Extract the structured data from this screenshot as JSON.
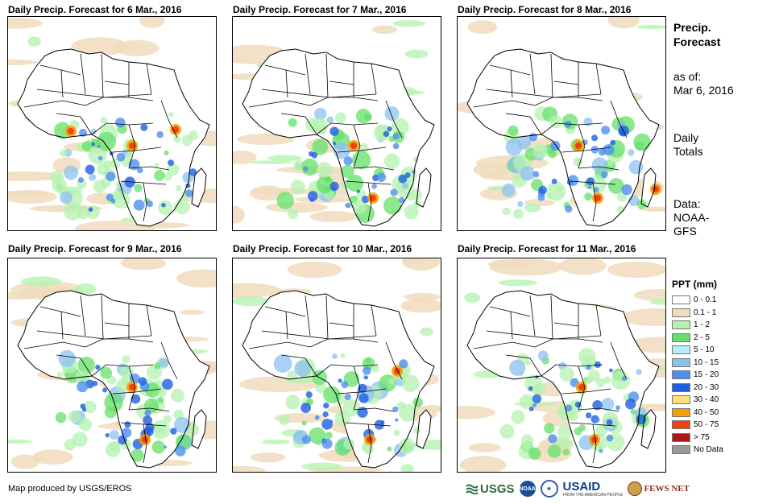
{
  "panels": [
    {
      "title": "Daily Precip. Forecast for 6 Mar., 2016",
      "hotspots": [
        "west",
        "central",
        "east"
      ]
    },
    {
      "title": "Daily Precip. Forecast for 7 Mar., 2016",
      "hotspots": [
        "central",
        "south"
      ]
    },
    {
      "title": "Daily Precip. Forecast for 8 Mar., 2016",
      "hotspots": [
        "central",
        "south",
        "madagascar"
      ]
    },
    {
      "title": "Daily Precip. Forecast for 9 Mar., 2016",
      "hotspots": [
        "south",
        "central"
      ]
    },
    {
      "title": "Daily Precip. Forecast for 10 Mar., 2016",
      "hotspots": [
        "south",
        "east"
      ]
    },
    {
      "title": "Daily Precip. Forecast for 11 Mar., 2016",
      "hotspots": [
        "south",
        "central"
      ]
    }
  ],
  "sidebar": {
    "title_line1": "Precip.",
    "title_line2": "Forecast",
    "asof_label": "as of:",
    "asof_date": "Mar 6, 2016",
    "totals_line1": "Daily",
    "totals_line2": "Totals",
    "data_label": "Data:",
    "data_line1": "NOAA-",
    "data_line2": "GFS"
  },
  "legend": {
    "title": "PPT (mm)",
    "items": [
      {
        "label": "0 - 0.1",
        "color": "#ffffff"
      },
      {
        "label": "0.1 - 1",
        "color": "#f0dcbc"
      },
      {
        "label": "1 - 2",
        "color": "#b6f2b0"
      },
      {
        "label": "2 - 5",
        "color": "#64e06a"
      },
      {
        "label": "5 - 10",
        "color": "#b8eef8"
      },
      {
        "label": "10 - 15",
        "color": "#8cc0f2"
      },
      {
        "label": "15 - 20",
        "color": "#4f8ef0"
      },
      {
        "label": "20 - 30",
        "color": "#1f5fe0"
      },
      {
        "label": "30 - 40",
        "color": "#fde07a"
      },
      {
        "label": "40 - 50",
        "color": "#f5a000"
      },
      {
        "label": "50 - 75",
        "color": "#f04010"
      },
      {
        "label": "> 75",
        "color": "#a81818"
      },
      {
        "label": "No Data",
        "color": "#9a9a9a"
      }
    ]
  },
  "footer": {
    "credit": "Map produced by USGS/EROS",
    "usgs": "USGS",
    "noaa": "NOAA",
    "usaid": "USAID",
    "usaid_tag": "FROM THE AMERICAN PEOPLE",
    "fews": "FEWS NET"
  }
}
